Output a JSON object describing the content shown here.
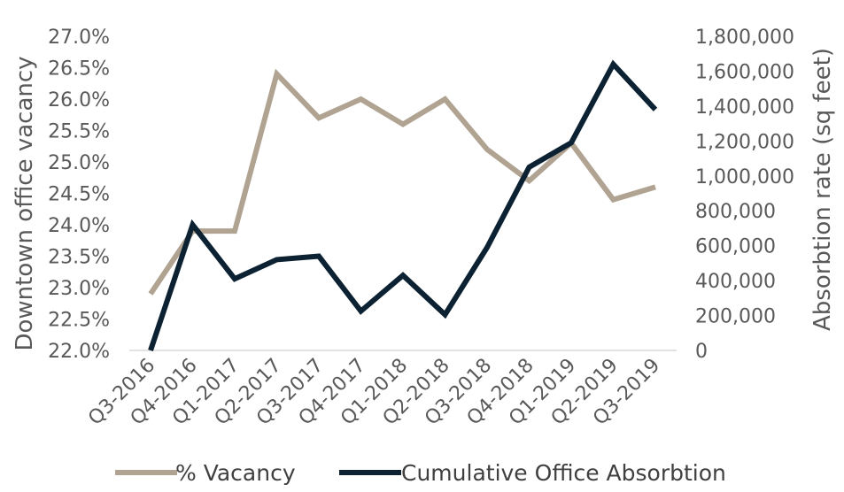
{
  "chart_data": {
    "type": "line",
    "categories": [
      "Q3-2016",
      "Q4-2016",
      "Q1-2017",
      "Q2-2017",
      "Q3-2017",
      "Q4-2017",
      "Q1-2018",
      "Q2-2018",
      "Q3-2018",
      "Q4-2018",
      "Q1-2019",
      "Q2-2019",
      "Q3-2019"
    ],
    "y_left_label": "Downtown office vacancy",
    "y_right_label": "Absorbtion rate (sq feet)",
    "y_left_range": [
      0.22,
      0.27
    ],
    "y_left_ticks": [
      "22.0%",
      "22.5%",
      "23.0%",
      "23.5%",
      "24.0%",
      "24.5%",
      "25.0%",
      "25.5%",
      "26.0%",
      "26.5%",
      "27.0%"
    ],
    "y_right_range": [
      0,
      1800000
    ],
    "y_right_ticks": [
      "0",
      "200,000",
      "400,000",
      "600,000",
      "800,000",
      "1,000,000",
      "1,200,000",
      "1,400,000",
      "1,600,000",
      "1,800,000"
    ],
    "grid": false,
    "legend_position": "bottom",
    "series": [
      {
        "name": "% Vacancy",
        "axis": "left",
        "color": "#b0a391",
        "values": [
          0.229,
          0.239,
          0.239,
          0.264,
          0.257,
          0.26,
          0.256,
          0.26,
          0.252,
          0.247,
          0.253,
          0.244,
          0.246
        ]
      },
      {
        "name": "Cumulative Office Absorbtion",
        "axis": "right",
        "color": "#0c2233",
        "values": [
          0,
          720000,
          410000,
          520000,
          540000,
          225000,
          430000,
          205000,
          590000,
          1050000,
          1190000,
          1640000,
          1380000
        ]
      }
    ]
  }
}
